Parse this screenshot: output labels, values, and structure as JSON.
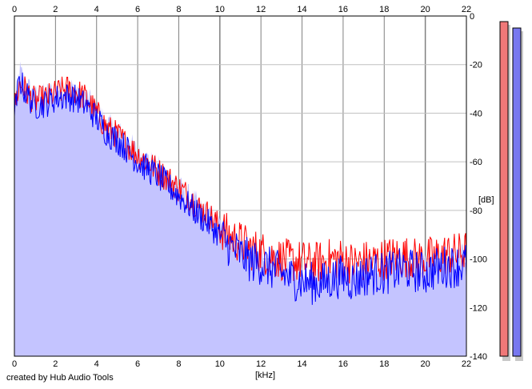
{
  "app": {
    "credit": "created by Hub Audio Tools"
  },
  "chart_data": {
    "type": "area",
    "title": "",
    "xlabel": "[kHz]",
    "ylabel": "[dB]",
    "xlim": [
      0,
      22
    ],
    "ylim": [
      -140,
      0
    ],
    "x_ticks": [
      "0",
      "2",
      "4",
      "6",
      "8",
      "10",
      "12",
      "14",
      "16",
      "18",
      "20",
      "22"
    ],
    "y_ticks": [
      "0",
      "-20",
      "-40",
      "-60",
      "-80",
      "-100",
      "-120",
      "-140"
    ],
    "grid": true,
    "series": [
      {
        "color": "#ff0000",
        "x": [
          0,
          0.25,
          0.5,
          0.75,
          1,
          1.5,
          2,
          2.5,
          3,
          3.5,
          4,
          4.5,
          5,
          5.5,
          6,
          6.5,
          7,
          7.5,
          8,
          8.5,
          9,
          9.5,
          10,
          10.5,
          11,
          11.5,
          12,
          12.5,
          13,
          13.5,
          14,
          14.5,
          15,
          15.5,
          16,
          16.5,
          17,
          17.5,
          18,
          18.5,
          19,
          19.5,
          20,
          20.5,
          21,
          21.5,
          22
        ],
        "y": [
          -38,
          -28,
          -30,
          -33,
          -35,
          -34,
          -32,
          -30,
          -31,
          -34,
          -40,
          -46,
          -49,
          -53,
          -57,
          -60,
          -64,
          -67,
          -71,
          -74,
          -79,
          -82,
          -87,
          -91,
          -93,
          -96,
          -97,
          -99,
          -100,
          -101,
          -101,
          -102,
          -101,
          -100,
          -100,
          -102,
          -101,
          -101,
          -100,
          -99,
          -99,
          -100,
          -100,
          -99,
          -98,
          -98,
          -97
        ]
      },
      {
        "color": "#0000ff",
        "x": [
          0,
          0.25,
          0.5,
          0.75,
          1,
          1.5,
          2,
          2.5,
          3,
          3.5,
          4,
          4.5,
          5,
          5.5,
          6,
          6.5,
          7,
          7.5,
          8,
          8.5,
          9,
          9.5,
          10,
          10.5,
          11,
          11.5,
          12,
          12.5,
          13,
          13.5,
          14,
          14.5,
          15,
          15.5,
          16,
          16.5,
          17,
          17.5,
          18,
          18.5,
          19,
          19.5,
          20,
          20.5,
          21,
          21.5,
          22
        ],
        "y": [
          -42,
          -26,
          -31,
          -34,
          -37,
          -36,
          -34,
          -33,
          -34,
          -37,
          -42,
          -48,
          -51,
          -55,
          -60,
          -63,
          -66,
          -70,
          -74,
          -78,
          -82,
          -86,
          -90,
          -95,
          -98,
          -101,
          -102,
          -104,
          -106,
          -108,
          -109,
          -110,
          -110,
          -108,
          -107,
          -109,
          -107,
          -106,
          -106,
          -105,
          -104,
          -105,
          -106,
          -104,
          -103,
          -103,
          -102
        ]
      }
    ],
    "fill_color": "#c4c4ff",
    "level_meters": [
      {
        "channel": "left",
        "color": "#f07878",
        "level_db": 0
      },
      {
        "channel": "right",
        "color": "#7878f0",
        "level_db": 0
      }
    ]
  }
}
